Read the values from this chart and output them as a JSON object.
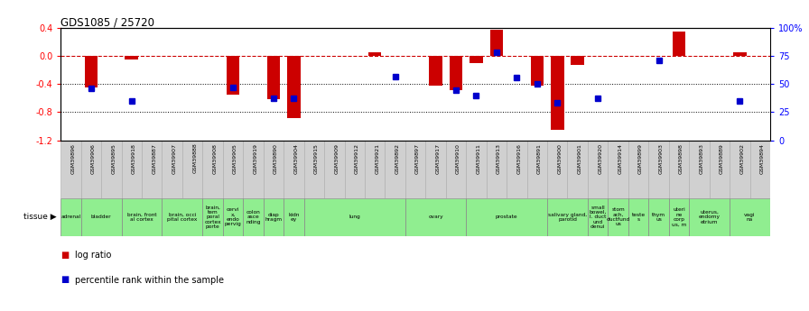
{
  "title": "GDS1085 / 25720",
  "samples": [
    "GSM39896",
    "GSM39906",
    "GSM39895",
    "GSM39918",
    "GSM39887",
    "GSM39907",
    "GSM39888",
    "GSM39908",
    "GSM39905",
    "GSM39919",
    "GSM39890",
    "GSM39904",
    "GSM39915",
    "GSM39909",
    "GSM39912",
    "GSM39921",
    "GSM39892",
    "GSM39897",
    "GSM39917",
    "GSM39910",
    "GSM39911",
    "GSM39913",
    "GSM39916",
    "GSM39891",
    "GSM39900",
    "GSM39901",
    "GSM39920",
    "GSM39914",
    "GSM39899",
    "GSM39903",
    "GSM39898",
    "GSM39893",
    "GSM39889",
    "GSM39902",
    "GSM39894"
  ],
  "log_ratio": [
    0.0,
    -0.45,
    0.0,
    -0.05,
    0.0,
    0.0,
    0.0,
    0.0,
    -0.55,
    0.0,
    -0.62,
    -0.88,
    0.0,
    0.0,
    0.0,
    0.05,
    0.0,
    0.0,
    -0.42,
    -0.48,
    -0.1,
    0.38,
    0.0,
    -0.42,
    -1.05,
    -0.12,
    0.0,
    0.0,
    0.0,
    0.0,
    0.35,
    0.0,
    0.0,
    0.05,
    0.0
  ],
  "percentile": [
    null,
    46,
    null,
    35,
    null,
    null,
    null,
    null,
    47,
    null,
    37,
    37,
    null,
    null,
    null,
    null,
    57,
    null,
    null,
    45,
    40,
    78,
    56,
    50,
    33,
    null,
    37,
    null,
    null,
    71,
    null,
    null,
    null,
    35,
    null
  ],
  "tissue_groups": [
    {
      "label": "adrenal",
      "start": 0,
      "end": 1
    },
    {
      "label": "bladder",
      "start": 1,
      "end": 3
    },
    {
      "label": "brain, front\nal cortex",
      "start": 3,
      "end": 5
    },
    {
      "label": "brain, occi\npital cortex",
      "start": 5,
      "end": 7
    },
    {
      "label": "brain,\ntem\nporal\ncortex\nporte",
      "start": 7,
      "end": 8
    },
    {
      "label": "cervi\nx,\nendo\npervig",
      "start": 8,
      "end": 9
    },
    {
      "label": "colon\nasce\nnding",
      "start": 9,
      "end": 10
    },
    {
      "label": "diap\nhragm",
      "start": 10,
      "end": 11
    },
    {
      "label": "kidn\ney",
      "start": 11,
      "end": 12
    },
    {
      "label": "lung",
      "start": 12,
      "end": 17
    },
    {
      "label": "ovary",
      "start": 17,
      "end": 20
    },
    {
      "label": "prostate",
      "start": 20,
      "end": 24
    },
    {
      "label": "salivary gland,\nparotid",
      "start": 24,
      "end": 26
    },
    {
      "label": "small\nbowel,\nl. duct\nund\ndenui",
      "start": 26,
      "end": 27
    },
    {
      "label": "stom\nach,\nductfund\nus",
      "start": 27,
      "end": 28
    },
    {
      "label": "teste\ns",
      "start": 28,
      "end": 29
    },
    {
      "label": "thym\nus",
      "start": 29,
      "end": 30
    },
    {
      "label": "uteri\nne\ncorp\nus, m",
      "start": 30,
      "end": 31
    },
    {
      "label": "uterus,\nendomy\netrium",
      "start": 31,
      "end": 33
    },
    {
      "label": "vagi\nna",
      "start": 33,
      "end": 35
    }
  ],
  "bar_color": "#cc0000",
  "dot_color": "#0000cc",
  "ref_line_color": "#cc0000",
  "ylim_left": [
    -1.2,
    0.4
  ],
  "ylim_right": [
    0,
    100
  ],
  "yticks_left": [
    -1.2,
    -0.8,
    -0.4,
    0.0,
    0.4
  ],
  "yticks_right": [
    0,
    25,
    50,
    75,
    100
  ],
  "ytick_labels_right": [
    "0",
    "25",
    "50",
    "75",
    "100%"
  ],
  "sample_box_color": "#d0d0d0",
  "tissue_color": "#90ee90",
  "tissue_border_color": "#888888"
}
